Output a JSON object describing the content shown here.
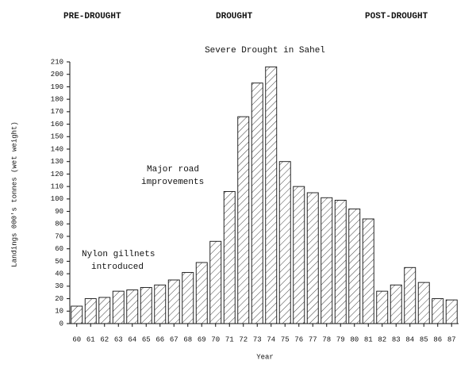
{
  "chart_data": {
    "type": "bar",
    "headers": [
      "PRE-DROUGHT",
      "DROUGHT",
      "POST-DROUGHT"
    ],
    "title": "Severe Drought in Sahel",
    "y_label": "Landings   000's tonnes (wet weight)",
    "x_label": "Year",
    "annotations": [
      [
        "Major road",
        "improvements"
      ],
      [
        "Nylon gillnets",
        "introduced"
      ]
    ],
    "categories": [
      "60",
      "61",
      "62",
      "63",
      "64",
      "65",
      "66",
      "67",
      "68",
      "69",
      "70",
      "71",
      "72",
      "73",
      "74",
      "75",
      "76",
      "77",
      "78",
      "79",
      "80",
      "81",
      "82",
      "83",
      "84",
      "85",
      "86",
      "87"
    ],
    "values": [
      14,
      20,
      21,
      26,
      27,
      29,
      31,
      35,
      41,
      49,
      66,
      106,
      166,
      193,
      206,
      130,
      110,
      105,
      101,
      99,
      92,
      84,
      26,
      31,
      45,
      33,
      20,
      19
    ],
    "color": "#111111",
    "ylim": [
      0,
      210
    ],
    "yticks": [
      0,
      10,
      20,
      30,
      40,
      50,
      60,
      70,
      80,
      90,
      100,
      110,
      120,
      130,
      140,
      150,
      160,
      170,
      180,
      190,
      200,
      210
    ]
  }
}
